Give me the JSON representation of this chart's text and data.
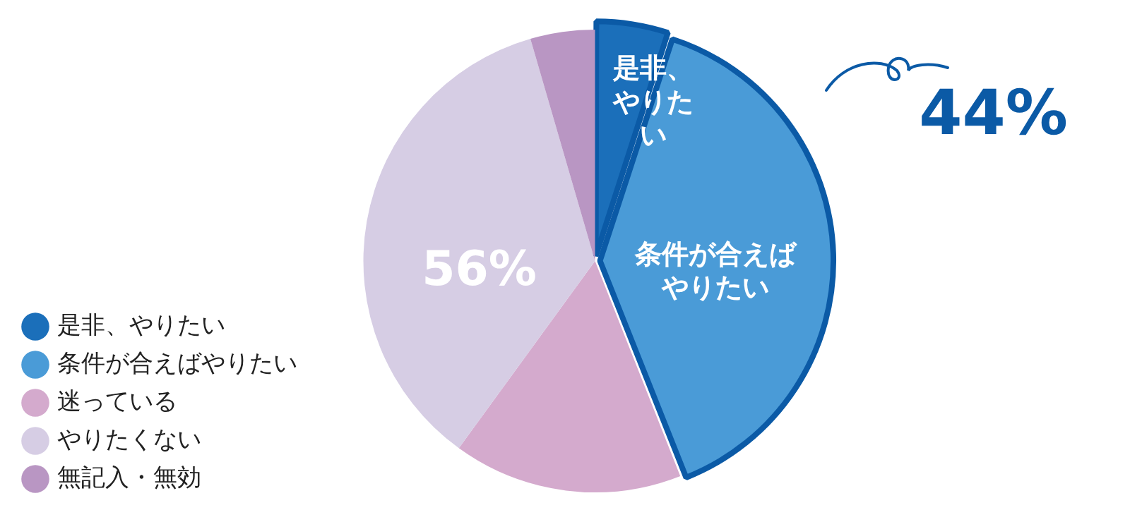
{
  "chart_data": {
    "type": "pie",
    "categories": [
      "是非、やりたい",
      "条件が合えばやりたい",
      "迷っている",
      "やりたくない",
      "無記入・無効"
    ],
    "values": [
      5,
      39,
      16,
      35.5,
      4.5
    ],
    "colors": [
      "#1b6fba",
      "#4a9bd7",
      "#d4aacd",
      "#d6cde4",
      "#b996c3"
    ],
    "legend": "bottom left",
    "annotations": [
      "44%",
      "56%",
      "是非、やりたい",
      "条件が合えばやりたい"
    ]
  }
}
